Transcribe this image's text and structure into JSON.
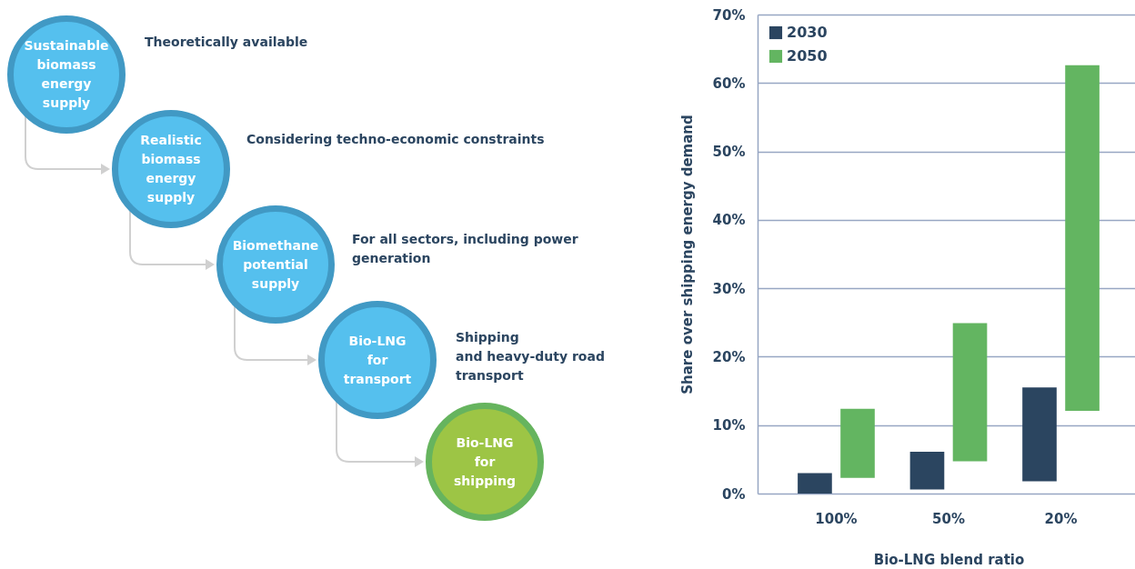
{
  "chart_data": [
    {
      "type": "other",
      "annotations": [
        "Sustainable biomass energy supply",
        "Theoretically available",
        "Realistic biomass energy supply",
        "Considering techno-economic constraints",
        "Biomethane potential supply",
        "For all sectors, including power generation",
        "Bio-LNG for transport",
        "Shipping\nand heavy-duty road transport",
        "Bio-LNG for shipping"
      ]
    },
    {
      "type": "bar",
      "categories": [
        "100%",
        "50%",
        "20%"
      ],
      "series": [
        {
          "name": "2030",
          "color": "#2b4560",
          "base": [
            0,
            0.6,
            1.8
          ],
          "values": [
            3.0,
            5.5,
            13.7
          ]
        },
        {
          "name": "2050",
          "color": "#63b561",
          "base": [
            2.3,
            4.7,
            12.1
          ],
          "values": [
            10.1,
            20.2,
            50.5
          ]
        }
      ],
      "xlabel": "Bio-LNG blend ratio",
      "ylabel": "Share over shipping energy demand",
      "ylim": [
        0,
        70
      ],
      "yticks": [
        {
          "value": 0,
          "label": "0%"
        },
        {
          "value": 10,
          "label": "10%"
        },
        {
          "value": 20,
          "label": "20%"
        },
        {
          "value": 30,
          "label": "30%"
        },
        {
          "value": 40,
          "label": "40%"
        },
        {
          "value": 50,
          "label": "50%"
        },
        {
          "value": 60,
          "label": "60%"
        },
        {
          "value": 70,
          "label": "70%"
        }
      ],
      "grid": "y",
      "legend": "top left"
    }
  ]
}
